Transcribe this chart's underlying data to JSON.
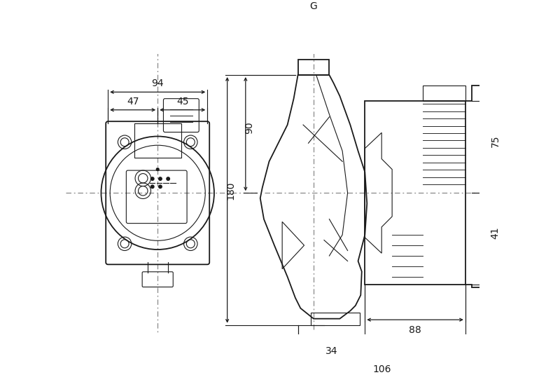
{
  "bg_color": "#ffffff",
  "line_color": "#1a1a1a",
  "dim_color": "#1a1a1a",
  "centerline_color": "#888888",
  "fig_width": 8.0,
  "fig_height": 5.35,
  "dpi": 100
}
